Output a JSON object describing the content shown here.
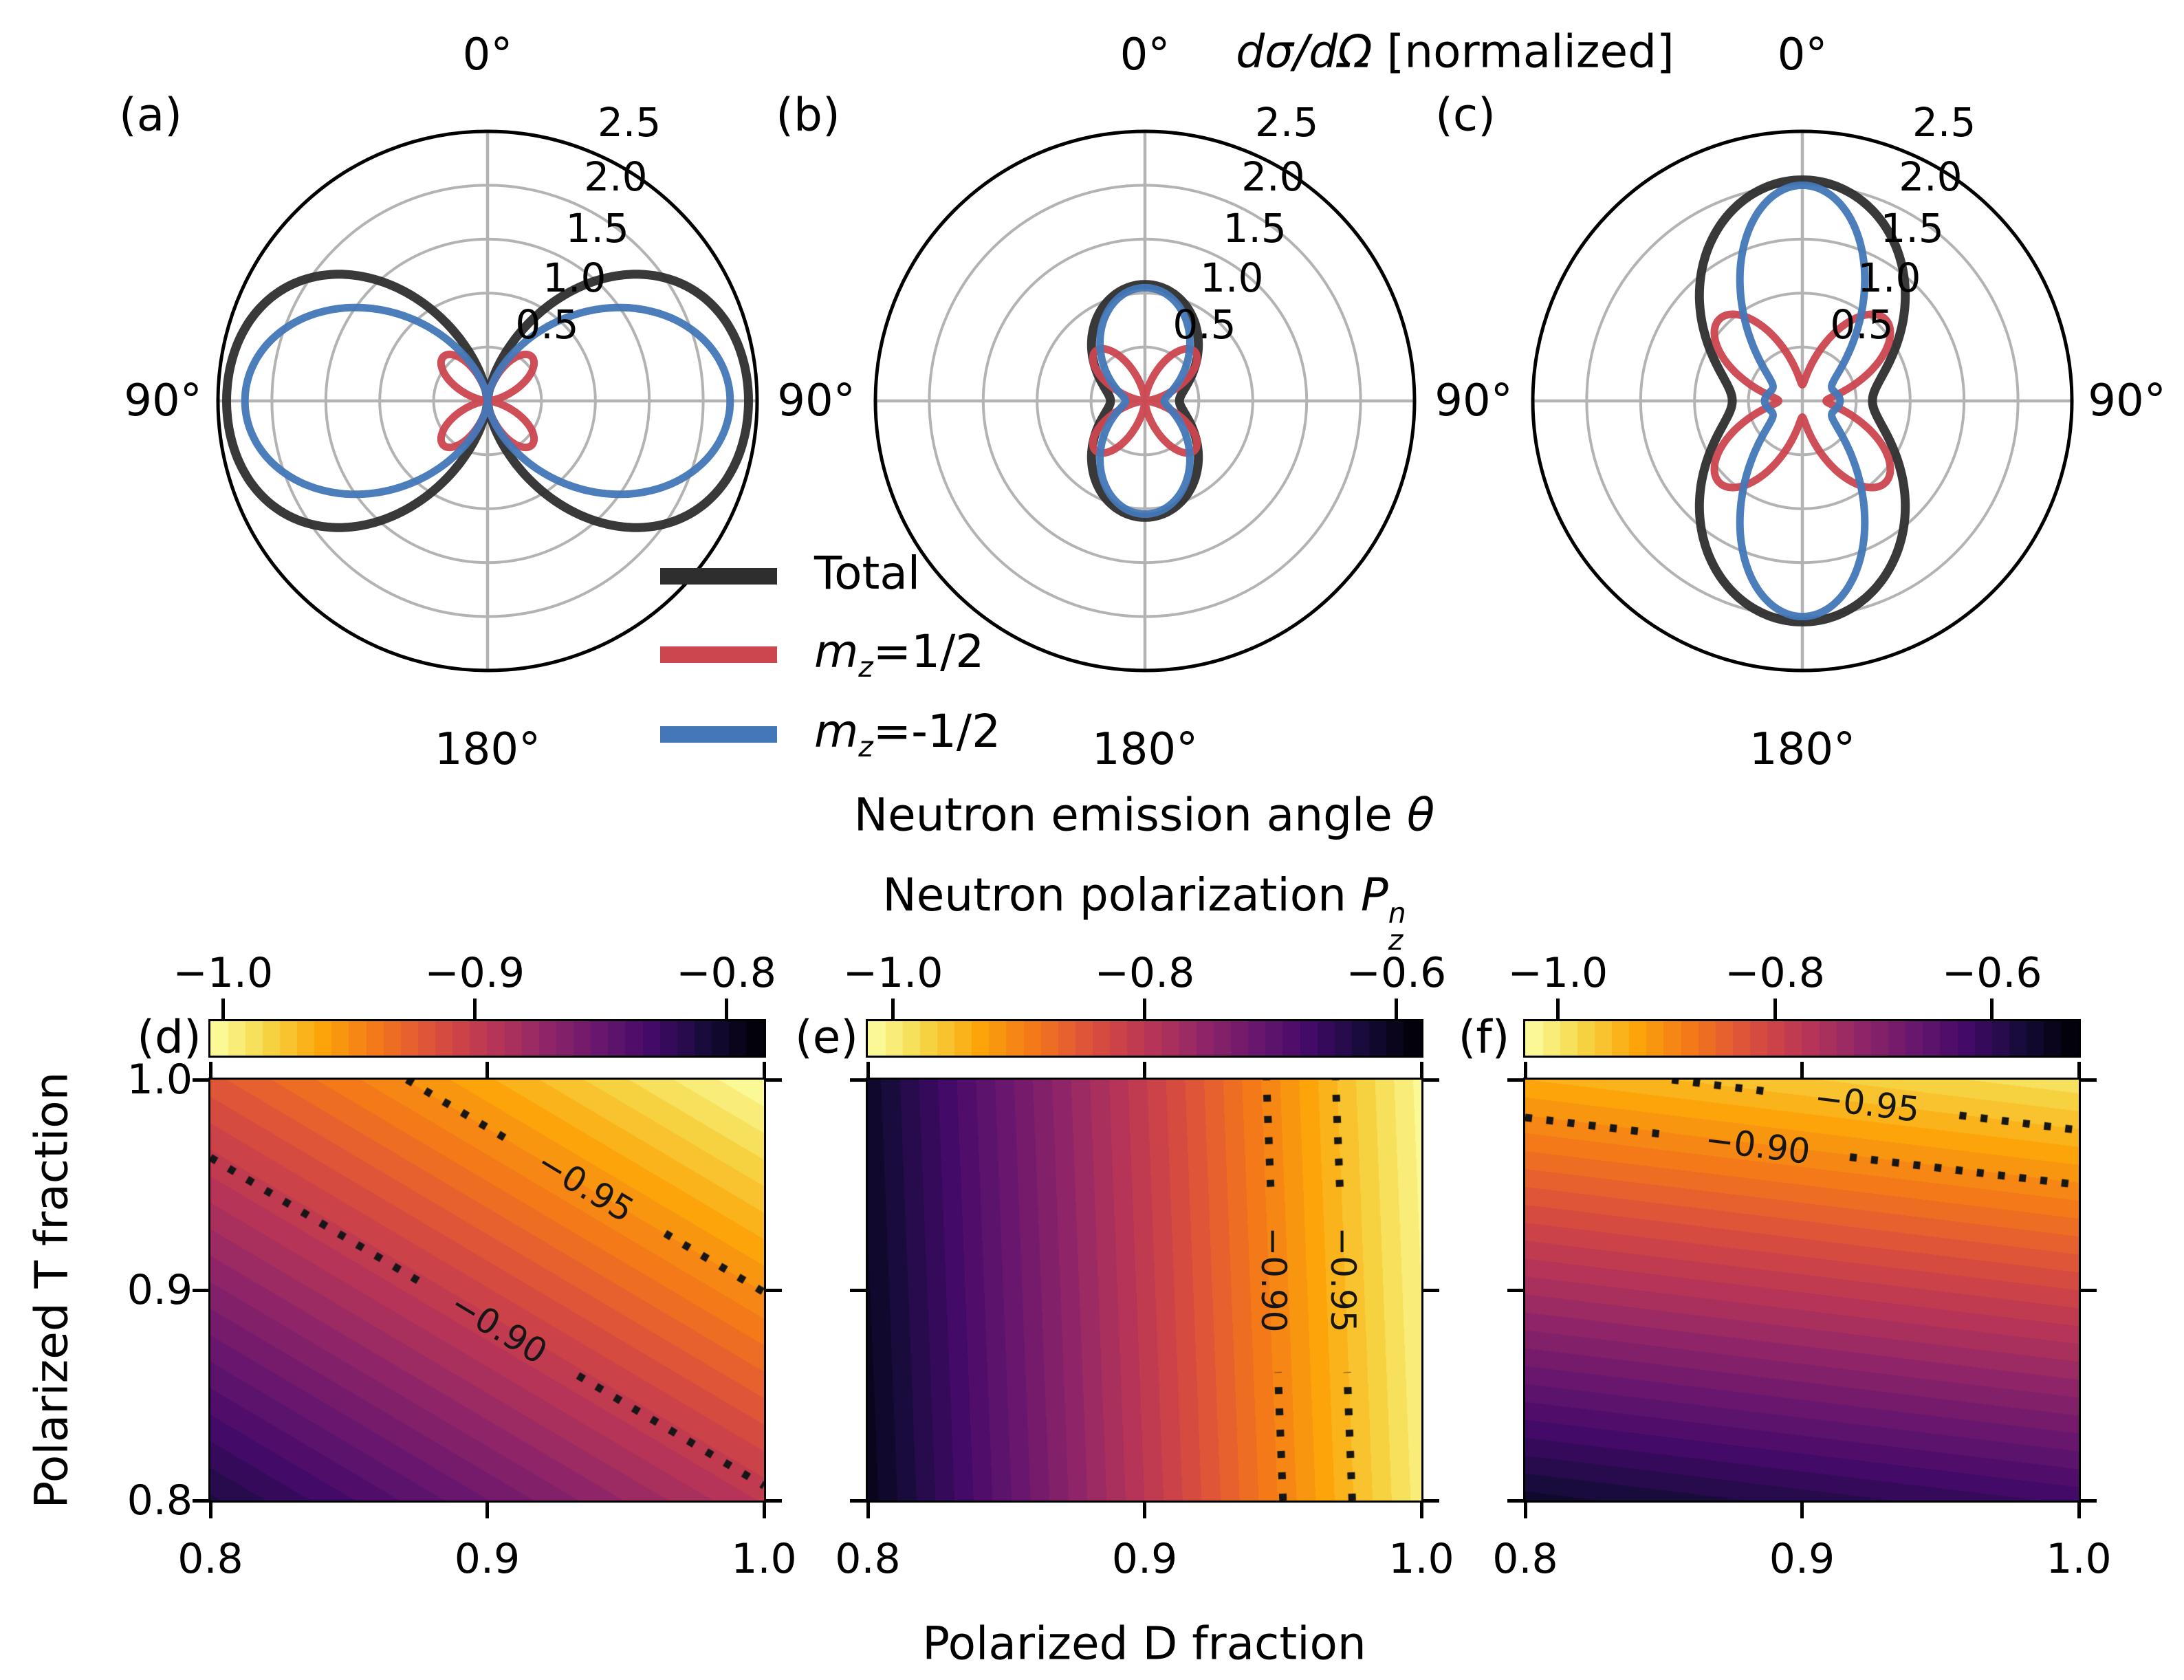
{
  "strings": {
    "top_title_math": "dσ/dΩ",
    "top_title_rest": " [normalized]",
    "emission_label": "Neutron emission angle ",
    "emission_theta": "θ",
    "polarization_label": "Neutron polarization ",
    "polarization_P": "P",
    "polarization_sup": "n",
    "polarization_sub": "z",
    "xlabel_bottom": "Polarized D fraction",
    "ylabel_bottom": "Polarized T fraction"
  },
  "legend": [
    {
      "it": "",
      "sub": "",
      "text": "Total",
      "color": "#2e2e2e"
    },
    {
      "it": "m",
      "sub": "z",
      "text": "=1/2",
      "color": "#cc4650"
    },
    {
      "it": "m",
      "sub": "z",
      "text": "=-1/2",
      "color": "#4377b8"
    }
  ],
  "chart_data": [
    {
      "id": "a",
      "type": "polar_line",
      "label": "(a)",
      "rlim": [
        0,
        2.5
      ],
      "rtick_values": [
        0.5,
        1.0,
        1.5,
        2.0,
        2.5
      ],
      "rtick_labels": [
        "0.5",
        "1.0",
        "1.5",
        "2.0",
        "2.5"
      ],
      "angle_labels": {
        "top": "0°",
        "left": "90°",
        "right": "90°",
        "bottom": "180°"
      },
      "theta_samples_deg": [
        0,
        15,
        30,
        45,
        60,
        75,
        90,
        105,
        120,
        135,
        150,
        165,
        180
      ],
      "series": [
        {
          "name": "Total",
          "color": "#2e2e2e",
          "width": 13,
          "r_terms": {
            "s2": 2.42,
            "s2x2": 0.42
          },
          "r_samples": [
            0,
            0.27,
            0.92,
            1.63,
            2.13,
            2.36,
            2.42,
            2.36,
            2.13,
            1.63,
            0.92,
            0.27,
            0
          ]
        },
        {
          "name": "mz=+1/2",
          "color": "#cc4650",
          "width": 11,
          "r_terms": {
            "s2x2": 0.58
          },
          "r_samples": [
            0,
            0.15,
            0.44,
            0.58,
            0.44,
            0.15,
            0,
            0.15,
            0.44,
            0.58,
            0.44,
            0.15,
            0
          ]
        },
        {
          "name": "mz=-1/2",
          "color": "#4377b8",
          "width": 11,
          "r_terms": {
            "s2": 2.25
          },
          "r_samples": [
            0,
            0.15,
            0.56,
            1.13,
            1.69,
            2.1,
            2.25,
            2.1,
            1.69,
            1.13,
            0.56,
            0.15,
            0
          ]
        }
      ]
    },
    {
      "id": "b",
      "type": "polar_line",
      "label": "(b)",
      "rlim": [
        0,
        2.5
      ],
      "rtick_values": [
        0.5,
        1.0,
        1.5,
        2.0,
        2.5
      ],
      "rtick_labels": [
        "0.5",
        "1.0",
        "1.5",
        "2.0",
        "2.5"
      ],
      "angle_labels": {
        "top": "0°",
        "left": "90°",
        "right": "90°",
        "bottom": "180°"
      },
      "theta_samples_deg": [
        0,
        15,
        30,
        45,
        60,
        75,
        90,
        105,
        120,
        135,
        150,
        165,
        180
      ],
      "series": [
        {
          "name": "Total",
          "color": "#2e2e2e",
          "width": 13,
          "r_terms": {
            "c": 0.32,
            "c2": 0.76
          },
          "r_samples": [
            1.08,
            1.03,
            0.89,
            0.7,
            0.51,
            0.37,
            0.32,
            0.37,
            0.51,
            0.7,
            0.89,
            1.03,
            1.08
          ]
        },
        {
          "name": "mz=+1/2",
          "color": "#cc4650",
          "width": 11,
          "r_terms": {
            "s2x2": 0.65
          },
          "r_samples": [
            0,
            0.16,
            0.49,
            0.65,
            0.49,
            0.16,
            0,
            0.16,
            0.49,
            0.65,
            0.49,
            0.16,
            0
          ]
        },
        {
          "name": "mz=-1/2",
          "color": "#4377b8",
          "width": 11,
          "r_terms": {
            "c2": 1.05,
            "s4": 0.18
          },
          "r_samples": [
            1.05,
            0.98,
            0.8,
            0.57,
            0.36,
            0.23,
            0.18,
            0.23,
            0.36,
            0.57,
            0.8,
            0.98,
            1.05
          ]
        }
      ]
    },
    {
      "id": "c",
      "type": "polar_line",
      "label": "(c)",
      "rlim": [
        0,
        2.5
      ],
      "rtick_values": [
        0.5,
        1.0,
        1.5,
        2.0,
        2.5
      ],
      "rtick_labels": [
        "0.5",
        "1.0",
        "1.5",
        "2.0",
        "2.5"
      ],
      "angle_labels": {
        "top": "0°",
        "left": "90°",
        "right": "90°",
        "bottom": "180°"
      },
      "theta_samples_deg": [
        0,
        15,
        30,
        45,
        60,
        75,
        90,
        105,
        120,
        135,
        150,
        165,
        180
      ],
      "series": [
        {
          "name": "Total",
          "color": "#2e2e2e",
          "width": 13,
          "r_terms": {
            "c": 0.65,
            "c2": 1.4
          },
          "r_samples": [
            2.05,
            1.96,
            1.7,
            1.35,
            1.0,
            0.74,
            0.65,
            0.74,
            1.0,
            1.35,
            1.7,
            1.96,
            2.05
          ]
        },
        {
          "name": "mz=+1/2",
          "color": "#cc4650",
          "width": 11,
          "r_terms": {
            "s2x2": 0.95,
            "c2": 0.15,
            "s4": 0.22
          },
          "r_samples": [
            0.15,
            0.38,
            0.84,
            1.08,
            0.87,
            0.44,
            0.22,
            0.44,
            0.87,
            1.08,
            0.84,
            0.38,
            0.15
          ]
        },
        {
          "name": "mz=-1/2",
          "color": "#4377b8",
          "width": 11,
          "r_terms": {
            "c4": 2.0,
            "s4": 0.35
          },
          "r_samples": [
            2.0,
            1.74,
            1.13,
            0.56,
            0.32,
            0.31,
            0.35,
            0.31,
            0.32,
            0.56,
            1.13,
            1.74,
            2.0
          ]
        }
      ]
    },
    {
      "id": "d",
      "type": "heatmap_contour",
      "label": "(d)",
      "xlim": [
        0.8,
        1.0
      ],
      "ylim": [
        0.8,
        1.0
      ],
      "xtick_labels": [
        "0.8",
        "0.9",
        "1.0"
      ],
      "ytick_labels": [
        "1.0",
        "0.9",
        "0.8"
      ],
      "field": {
        "c0": 0.811,
        "cv": 0.085,
        "cu": 0.109,
        "note": "P = -(c0 + cv*(D-0.8)/0.2 + cu*(T-0.8)/0.2)"
      },
      "corner_values": {
        "bottom_left": -0.811,
        "bottom_right": -0.896,
        "top_left": -0.92,
        "top_right": -1.005
      },
      "colorbar": {
        "vmin": -1.005,
        "vmax": -0.785,
        "ticks": [
          {
            "v": -1.0,
            "label": "−1.0"
          },
          {
            "v": -0.9,
            "label": "−0.9"
          },
          {
            "v": -0.8,
            "label": "−0.8"
          }
        ]
      },
      "contours": [
        {
          "level": -0.95,
          "label": "−0.95",
          "p1": [
            0.871,
            1.0
          ],
          "p2": [
            1.0,
            0.899
          ],
          "label_pos": [
            0.9355,
            0.9495
          ],
          "label_rot": 31
        },
        {
          "level": -0.9,
          "label": "−0.90",
          "p1": [
            0.8,
            0.963
          ],
          "p2": [
            1.0,
            0.807
          ],
          "label_pos": [
            0.904,
            0.882
          ],
          "label_rot": 31
        }
      ]
    },
    {
      "id": "e",
      "type": "heatmap_contour",
      "label": "(e)",
      "xlim": [
        0.8,
        1.0
      ],
      "ylim": [
        0.8,
        1.0
      ],
      "xtick_labels": [
        "0.8",
        "0.9",
        "1.0"
      ],
      "ytick_labels": [],
      "field": {
        "c0": 0.6,
        "cv": 0.4,
        "cu": 0.012,
        "note": "P = -(c0 + cv*(D-0.8)/0.2 + cu*(T-0.8)/0.2)"
      },
      "corner_values": {
        "bottom_left": -0.6,
        "bottom_right": -1.0,
        "top_left": -0.612,
        "top_right": -1.012
      },
      "colorbar": {
        "vmin": -1.02,
        "vmax": -0.58,
        "ticks": [
          {
            "v": -1.0,
            "label": "−1.0"
          },
          {
            "v": -0.8,
            "label": "−0.8"
          },
          {
            "v": -0.6,
            "label": "−0.6"
          }
        ]
      },
      "contours": [
        {
          "level": -0.9,
          "label": "−0.90",
          "p1": [
            0.95,
            0.8
          ],
          "p2": [
            0.944,
            1.0
          ],
          "label_pos": [
            0.9467,
            0.905
          ],
          "label_rot": 90
        },
        {
          "level": -0.95,
          "label": "−0.95",
          "p1": [
            0.975,
            0.8
          ],
          "p2": [
            0.969,
            1.0
          ],
          "label_pos": [
            0.9717,
            0.905
          ],
          "label_rot": 90
        }
      ]
    },
    {
      "id": "f",
      "type": "heatmap_contour",
      "label": "(f)",
      "xlim": [
        0.8,
        1.0
      ],
      "ylim": [
        0.8,
        1.0
      ],
      "xtick_labels": [
        "0.8",
        "0.9",
        "1.0"
      ],
      "ytick_labels": [],
      "field": {
        "c0": 0.56,
        "cv": 0.06,
        "cu": 0.374,
        "note": "P = -(c0 + cv*(D-0.8)/0.2 + cu*(T-0.8)/0.2)"
      },
      "corner_values": {
        "bottom_left": -0.56,
        "bottom_right": -0.62,
        "top_left": -0.934,
        "top_right": -0.994
      },
      "colorbar": {
        "vmin": -1.03,
        "vmax": -0.52,
        "ticks": [
          {
            "v": -1.0,
            "label": "−1.0"
          },
          {
            "v": -0.8,
            "label": "−0.8"
          },
          {
            "v": -0.6,
            "label": "−0.6"
          }
        ]
      },
      "contours": [
        {
          "level": -0.95,
          "label": "−0.95",
          "p1": [
            0.853,
            1.0
          ],
          "p2": [
            1.0,
            0.976
          ],
          "label_pos": [
            0.9236,
            0.9885
          ],
          "label_rot": 7
        },
        {
          "level": -0.9,
          "label": "−0.90",
          "p1": [
            0.8,
            0.982
          ],
          "p2": [
            1.0,
            0.95
          ],
          "label_pos": [
            0.884,
            0.9686
          ],
          "label_rot": 7
        }
      ]
    }
  ]
}
